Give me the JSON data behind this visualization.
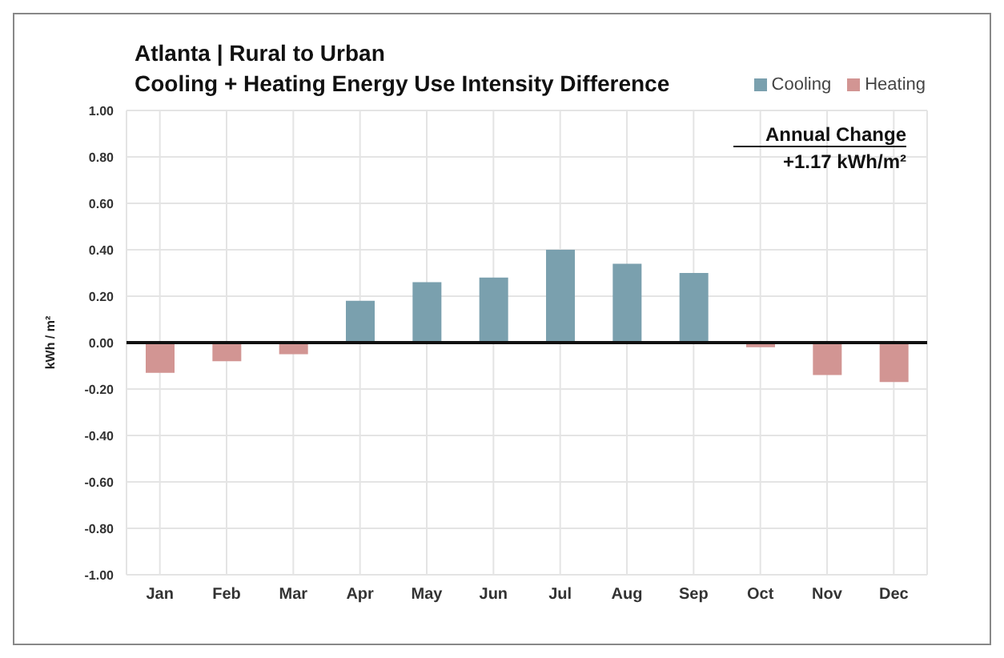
{
  "chart_data": {
    "type": "bar",
    "title": "Atlanta | Rural to Urban",
    "subtitle": "Cooling + Heating Energy Use Intensity Difference",
    "ylabel": "kWh / m²",
    "categories": [
      "Jan",
      "Feb",
      "Mar",
      "Apr",
      "May",
      "Jun",
      "Jul",
      "Aug",
      "Sep",
      "Oct",
      "Nov",
      "Dec"
    ],
    "series": [
      {
        "name": "Cooling",
        "color": "#7aa0ae",
        "values": [
          null,
          null,
          null,
          0.18,
          0.26,
          0.28,
          0.4,
          0.34,
          0.3,
          null,
          null,
          null
        ]
      },
      {
        "name": "Heating",
        "color": "#d29593",
        "values": [
          -0.13,
          -0.08,
          -0.05,
          null,
          null,
          null,
          null,
          null,
          null,
          -0.02,
          -0.14,
          -0.17
        ]
      }
    ],
    "stacked": true,
    "ylim": [
      -1,
      1
    ],
    "yticks": [
      {
        "value": -1,
        "label": "-1.00"
      },
      {
        "value": -0.8,
        "label": "-0.80"
      },
      {
        "value": -0.6,
        "label": "-0.60"
      },
      {
        "value": -0.4,
        "label": "-0.40"
      },
      {
        "value": -0.2,
        "label": "-0.20"
      },
      {
        "value": 0,
        "label": "0.00"
      },
      {
        "value": 0.2,
        "label": "0.20"
      },
      {
        "value": 0.4,
        "label": "0.40"
      },
      {
        "value": 0.6,
        "label": "0.60"
      },
      {
        "value": 0.8,
        "label": "0.80"
      },
      {
        "value": 1,
        "label": "1.00"
      }
    ],
    "grid": true,
    "legend": "top right",
    "annotations": [
      "Annual Change",
      "+1.17 kWh/m²"
    ]
  }
}
